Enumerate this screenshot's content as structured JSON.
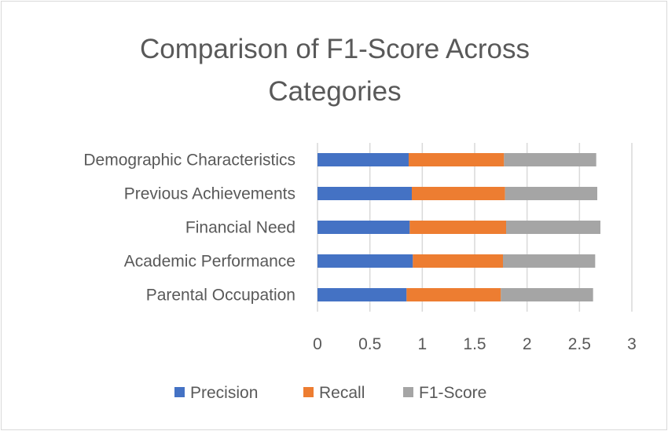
{
  "chart_data": {
    "type": "bar",
    "orientation": "horizontal",
    "stacked": true,
    "title": "Comparison of F1-Score Across Categories",
    "title_lines": [
      "Comparison of F1-Score Across",
      "Categories"
    ],
    "categories": [
      "Parental Occupation",
      "Academic Performance",
      "Financial Need",
      "Previous Achievements",
      "Demographic Characteristics"
    ],
    "series": [
      {
        "name": "Precision",
        "color": "#4472C4",
        "values": [
          0.85,
          0.91,
          0.88,
          0.9,
          0.87
        ]
      },
      {
        "name": "Recall",
        "color": "#ED7D31",
        "values": [
          0.9,
          0.86,
          0.92,
          0.89,
          0.91
        ]
      },
      {
        "name": "F1-Score",
        "color": "#A5A5A5",
        "values": [
          0.88,
          0.88,
          0.9,
          0.88,
          0.88
        ]
      }
    ],
    "xlim": [
      0,
      3
    ],
    "xticks": [
      0,
      0.5,
      1,
      1.5,
      2,
      2.5,
      3
    ],
    "xtick_labels": [
      "0",
      "0.5",
      "1",
      "1.5",
      "2",
      "2.5",
      "3"
    ],
    "xlabel": "",
    "ylabel": "",
    "grid": "vertical",
    "legend_position": "bottom"
  }
}
